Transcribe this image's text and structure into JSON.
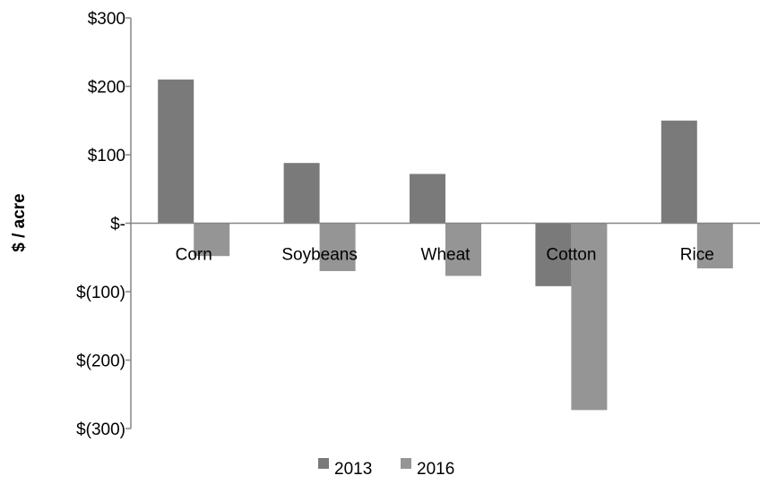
{
  "chart_data": {
    "type": "bar",
    "title": "",
    "xlabel": "",
    "ylabel": "$ / acre",
    "categories": [
      "Corn",
      "Soybeans",
      "Wheat",
      "Cotton",
      "Rice"
    ],
    "series": [
      {
        "name": "2013",
        "values": [
          210,
          88,
          72,
          -92,
          150
        ],
        "color": "#7a7a7a"
      },
      {
        "name": "2016",
        "values": [
          -48,
          -70,
          -77,
          -273,
          -66
        ],
        "color": "#959595"
      }
    ],
    "ylim": [
      -300,
      300
    ],
    "yticks": [
      300,
      200,
      100,
      0,
      -100,
      -200,
      -300
    ],
    "ytick_labels": [
      "$300",
      "$200",
      "$100",
      "$-",
      "$(100)",
      "$(200)",
      "$(300)"
    ],
    "grid": false,
    "legend_position": "bottom"
  }
}
